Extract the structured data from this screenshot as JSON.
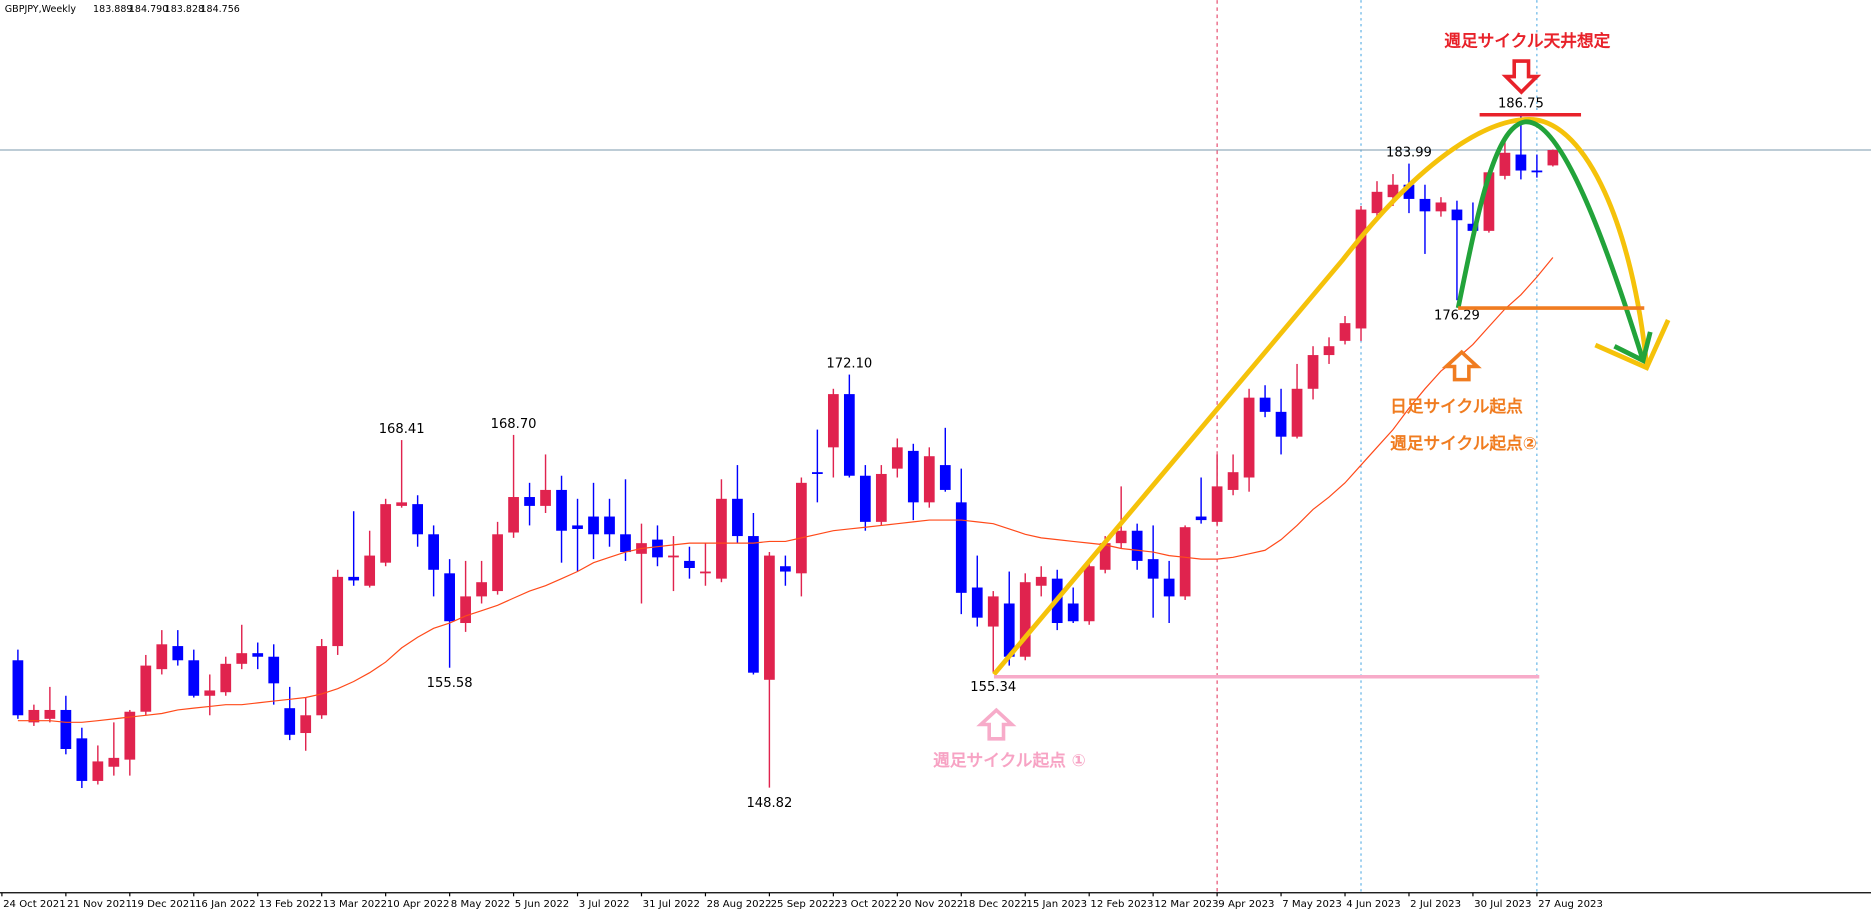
{
  "chart_data": {
    "type": "candlestick",
    "title": "GBPJPY,Weekly",
    "header_ohlc": [
      "183.889",
      "184.790",
      "183.828",
      "184.756"
    ],
    "categories": [
      "24 Oct 2021",
      null,
      null,
      null,
      "21 Nov 2021",
      null,
      null,
      null,
      "19 Dec 2021",
      null,
      null,
      null,
      "16 Jan 2022",
      null,
      null,
      null,
      "13 Feb 2022",
      null,
      null,
      null,
      "13 Mar 2022",
      null,
      null,
      null,
      "10 Apr 2022",
      null,
      null,
      null,
      "8 May 2022",
      null,
      null,
      null,
      "5 Jun 2022",
      null,
      null,
      null,
      "3 Jul 2022",
      null,
      null,
      null,
      "31 Jul 2022",
      null,
      null,
      null,
      "28 Aug 2022",
      null,
      null,
      null,
      "25 Sep 2022",
      null,
      null,
      null,
      "23 Oct 2022",
      null,
      null,
      null,
      "20 Nov 2022",
      null,
      null,
      null,
      "18 Dec 2022",
      null,
      null,
      null,
      "15 Jan 2023",
      null,
      null,
      null,
      "12 Feb 2023",
      null,
      null,
      null,
      "12 Mar 2023",
      null,
      null,
      null,
      "9 Apr 2023",
      null,
      null,
      null,
      "7 May 2023",
      null,
      null,
      null,
      "4 Jun 2023",
      null,
      null,
      null,
      "2 Jul 2023",
      null,
      null,
      null,
      "30 Jul 2023",
      null,
      null,
      null,
      "27 Aug 2023",
      null
    ],
    "open": [
      null,
      156.0,
      152.5,
      152.7,
      153.2,
      151.6,
      149.2,
      150.0,
      150.4,
      153.1,
      155.5,
      156.8,
      156.0,
      154.0,
      154.2,
      155.8,
      156.4,
      156.2,
      153.3,
      151.9,
      152.9,
      156.8,
      160.7,
      160.2,
      161.5,
      164.7,
      164.8,
      163.1,
      160.9,
      158.1,
      159.6,
      159.9,
      163.2,
      165.2,
      164.7,
      165.6,
      163.6,
      164.1,
      164.1,
      163.1,
      162.0,
      162.8,
      161.8,
      161.6,
      160.9,
      160.6,
      165.1,
      163.0,
      154.9,
      161.3,
      160.9,
      166.6,
      168.0,
      171.0,
      166.4,
      163.8,
      166.8,
      167.8,
      164.9,
      167.0,
      164.9,
      160.1,
      157.9,
      159.2,
      156.2,
      160.2,
      160.6,
      159.2,
      158.2,
      161.1,
      162.6,
      163.3,
      161.7,
      160.6,
      159.6,
      164.1,
      163.8,
      165.6,
      166.3,
      170.8,
      170.0,
      168.6,
      171.3,
      173.2,
      174.0,
      174.7,
      181.2,
      182.1,
      182.8,
      182.0,
      181.3,
      181.4,
      180.6,
      180.2,
      183.3,
      184.5,
      183.6,
      183.889
    ],
    "high": [
      null,
      156.6,
      153.5,
      154.5,
      154.0,
      152.2,
      151.2,
      152.5,
      153.2,
      156.3,
      157.7,
      157.7,
      156.6,
      155.2,
      156.2,
      158.0,
      157.0,
      156.9,
      154.5,
      153.9,
      157.2,
      161.1,
      164.4,
      163.3,
      165.1,
      168.41,
      165.3,
      163.6,
      161.7,
      161.6,
      161.6,
      163.8,
      168.7,
      166.0,
      167.6,
      166.4,
      165.1,
      166.0,
      165.1,
      166.2,
      163.7,
      163.6,
      163.0,
      162.4,
      162.6,
      166.2,
      167.0,
      164.3,
      162.1,
      161.9,
      166.3,
      169.0,
      171.3,
      172.1,
      167.0,
      167.0,
      168.5,
      168.2,
      168.0,
      169.1,
      166.8,
      161.9,
      159.9,
      161.0,
      160.9,
      161.3,
      161.1,
      160.1,
      161.6,
      163.0,
      165.8,
      163.7,
      163.6,
      161.6,
      163.6,
      166.3,
      167.6,
      167.6,
      171.3,
      171.5,
      171.3,
      172.7,
      173.7,
      174.2,
      175.4,
      181.6,
      183.0,
      183.4,
      183.99,
      182.8,
      182.1,
      181.9,
      181.8,
      183.6,
      185.3,
      186.75,
      184.5,
      184.79
    ],
    "low": [
      null,
      152.7,
      152.3,
      152.5,
      150.7,
      148.8,
      149.0,
      149.5,
      149.5,
      152.9,
      155.2,
      155.7,
      153.9,
      152.9,
      154.0,
      155.5,
      155.5,
      153.5,
      151.5,
      150.9,
      152.7,
      156.3,
      160.2,
      160.1,
      161.3,
      164.6,
      162.4,
      159.6,
      155.58,
      157.6,
      159.2,
      159.7,
      162.9,
      163.6,
      164.3,
      161.5,
      161.0,
      161.7,
      162.4,
      161.6,
      159.2,
      161.3,
      159.9,
      160.6,
      160.2,
      160.4,
      162.6,
      155.2,
      148.82,
      160.2,
      159.6,
      164.9,
      166.3,
      166.3,
      163.3,
      163.6,
      166.3,
      163.9,
      164.6,
      165.5,
      158.6,
      157.9,
      155.34,
      155.7,
      156.0,
      159.6,
      157.7,
      158.1,
      158.0,
      160.9,
      162.3,
      161.1,
      158.4,
      158.1,
      159.4,
      163.7,
      163.6,
      165.3,
      165.5,
      169.7,
      167.6,
      168.5,
      170.7,
      172.7,
      173.8,
      174.0,
      180.8,
      181.6,
      181.2,
      178.9,
      181.0,
      176.29,
      180.1,
      180.1,
      183.1,
      183.1,
      183.2,
      183.828
    ],
    "close": [
      null,
      152.9,
      153.2,
      153.2,
      151.0,
      149.2,
      150.3,
      150.5,
      153.1,
      155.7,
      156.9,
      156.0,
      154.0,
      154.3,
      155.8,
      156.4,
      156.2,
      154.7,
      151.8,
      152.9,
      156.8,
      160.7,
      160.5,
      161.9,
      164.8,
      164.9,
      163.1,
      161.1,
      158.2,
      159.6,
      160.4,
      163.1,
      165.2,
      164.7,
      165.6,
      163.3,
      163.4,
      163.1,
      163.1,
      162.1,
      162.6,
      161.8,
      161.9,
      161.2,
      161.0,
      165.1,
      163.0,
      155.3,
      161.9,
      161.0,
      166.0,
      166.5,
      171.0,
      166.4,
      163.8,
      166.5,
      168.0,
      164.9,
      167.5,
      165.6,
      159.8,
      158.4,
      159.6,
      156.2,
      160.4,
      160.7,
      158.1,
      158.2,
      161.3,
      162.6,
      163.3,
      161.6,
      160.6,
      159.6,
      163.5,
      163.9,
      165.8,
      166.6,
      170.8,
      170.0,
      168.6,
      171.3,
      173.2,
      173.7,
      175.0,
      181.4,
      182.4,
      182.8,
      182.0,
      181.3,
      181.8,
      180.8,
      180.2,
      183.5,
      184.6,
      183.6,
      183.5,
      184.756
    ],
    "moving_average": [
      null,
      152.6,
      152.6,
      152.6,
      152.5,
      152.5,
      152.6,
      152.7,
      152.8,
      152.9,
      153.0,
      153.2,
      153.3,
      153.4,
      153.5,
      153.5,
      153.6,
      153.7,
      153.8,
      153.9,
      154.1,
      154.4,
      154.8,
      155.3,
      155.9,
      156.7,
      157.3,
      157.8,
      158.1,
      158.5,
      158.8,
      159.1,
      159.5,
      159.9,
      160.2,
      160.6,
      161.0,
      161.5,
      161.8,
      162.1,
      162.3,
      162.4,
      162.5,
      162.6,
      162.6,
      162.6,
      162.6,
      162.6,
      162.7,
      162.7,
      162.9,
      163.1,
      163.3,
      163.4,
      163.5,
      163.6,
      163.7,
      163.8,
      163.9,
      163.9,
      163.9,
      163.8,
      163.7,
      163.4,
      163.1,
      162.9,
      162.8,
      162.7,
      162.6,
      162.5,
      162.3,
      162.2,
      162.1,
      161.9,
      161.8,
      161.7,
      161.7,
      161.8,
      162.0,
      162.2,
      162.8,
      163.6,
      164.5,
      165.2,
      166.0,
      167.0,
      168.0,
      169.0,
      170.2,
      171.3,
      172.3,
      173.0,
      173.8,
      174.8,
      175.8,
      176.6,
      177.6,
      178.7
    ],
    "high_labels": [
      null,
      null,
      null,
      null,
      null,
      null,
      null,
      null,
      null,
      null,
      null,
      null,
      null,
      null,
      null,
      null,
      null,
      null,
      null,
      null,
      null,
      null,
      null,
      null,
      null,
      "168.41",
      null,
      null,
      null,
      null,
      null,
      null,
      "168.70",
      null,
      null,
      null,
      null,
      null,
      null,
      null,
      null,
      null,
      null,
      null,
      null,
      null,
      null,
      null,
      null,
      null,
      null,
      null,
      null,
      "172.10",
      null,
      null,
      null,
      null,
      null,
      null,
      null,
      null,
      null,
      null,
      null,
      null,
      null,
      null,
      null,
      null,
      null,
      null,
      null,
      null,
      null,
      null,
      null,
      null,
      null,
      null,
      null,
      null,
      null,
      null,
      null,
      null,
      null,
      null,
      "183.99",
      null,
      null,
      null,
      null,
      null,
      null,
      "186.75",
      null,
      null
    ],
    "low_labels": [
      null,
      null,
      null,
      null,
      null,
      null,
      null,
      null,
      null,
      null,
      null,
      null,
      null,
      null,
      null,
      null,
      null,
      null,
      null,
      null,
      null,
      null,
      null,
      null,
      null,
      null,
      null,
      null,
      "155.58",
      null,
      null,
      null,
      null,
      null,
      null,
      null,
      null,
      null,
      null,
      null,
      null,
      null,
      null,
      null,
      null,
      null,
      null,
      null,
      "148.82",
      null,
      null,
      null,
      null,
      null,
      null,
      null,
      null,
      null,
      null,
      null,
      null,
      null,
      "155.34",
      null,
      null,
      null,
      null,
      null,
      null,
      null,
      null,
      null,
      null,
      null,
      null,
      null,
      null,
      null,
      null,
      null,
      null,
      null,
      null,
      null,
      null,
      null,
      null,
      null,
      null,
      null,
      null,
      "176.29",
      null,
      null,
      null,
      null,
      null,
      null
    ],
    "up_color": "#e0234e",
    "down_color": "#0000ff",
    "ma_color": "#ff4a1a",
    "ylim": [
      142.9,
      193.2
    ],
    "annotations": {
      "ceiling": "週足サイクル天井想定",
      "daily_start": "日足サイクル起点",
      "weekly_start_2": "週足サイクル起点②",
      "weekly_start_1": "週足サイクル起点 ①"
    }
  }
}
